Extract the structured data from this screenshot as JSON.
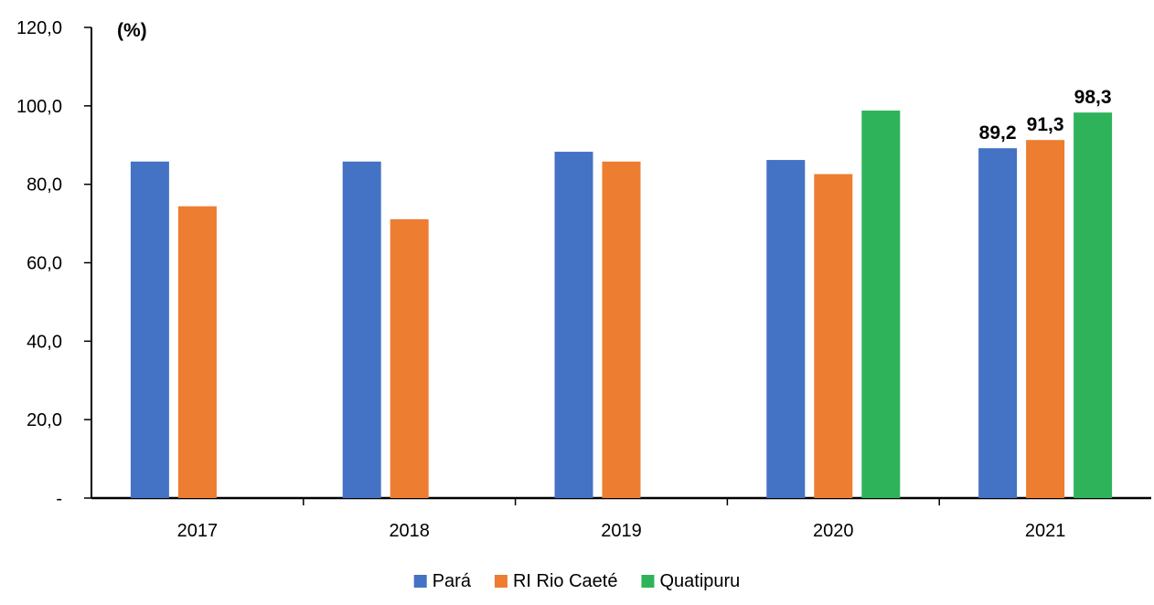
{
  "chart_data": {
    "type": "bar",
    "unit_label": "(%)",
    "categories": [
      "2017",
      "2018",
      "2019",
      "2020",
      "2021"
    ],
    "series": [
      {
        "name": "Pará",
        "color": "#4472C4",
        "values": [
          85.8,
          85.8,
          88.3,
          86.2,
          89.2
        ]
      },
      {
        "name": "RI Rio Caeté",
        "color": "#ED7D31",
        "values": [
          74.4,
          71.1,
          85.8,
          82.6,
          91.3
        ]
      },
      {
        "name": "Quatipuru",
        "color": "#2EB35A",
        "values": [
          null,
          null,
          null,
          98.8,
          98.3
        ]
      }
    ],
    "ylim": [
      0,
      120
    ],
    "yticks": [
      0,
      20,
      40,
      60,
      80,
      100,
      120
    ],
    "ytick_labels": [
      "-",
      "20,0",
      "40,0",
      "60,0",
      "80,0",
      "100,0",
      "120,0"
    ],
    "data_labels": [
      {
        "category": "2021",
        "series": "Pará",
        "text": "89,2"
      },
      {
        "category": "2021",
        "series": "RI Rio Caeté",
        "text": "91,3"
      },
      {
        "category": "2021",
        "series": "Quatipuru",
        "text": "98,3"
      }
    ],
    "legend_position": "bottom",
    "grid": false
  }
}
